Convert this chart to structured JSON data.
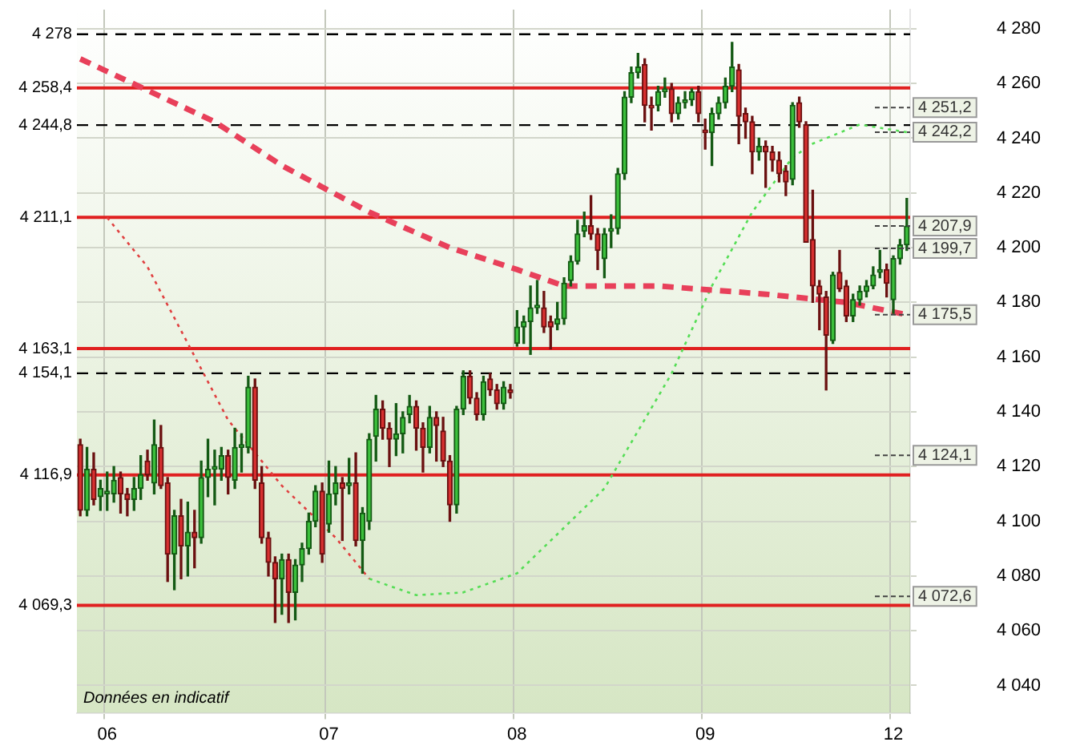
{
  "chart_data": {
    "type": "candlestick",
    "categories": [
      null,
      null,
      null,
      null,
      "06",
      null,
      null,
      null,
      null,
      null,
      null,
      null,
      null,
      null,
      null,
      null,
      null,
      null,
      null,
      null,
      null,
      null,
      null,
      null,
      null,
      null,
      null,
      null,
      null,
      null,
      null,
      null,
      null,
      null,
      null,
      null,
      null,
      "07",
      null,
      null,
      null,
      null,
      null,
      null,
      null,
      null,
      null,
      null,
      null,
      null,
      null,
      null,
      null,
      null,
      null,
      null,
      null,
      null,
      null,
      null,
      null,
      null,
      null,
      null,
      null,
      "08",
      null,
      null,
      null,
      null,
      null,
      null,
      null,
      null,
      null,
      null,
      null,
      null,
      null,
      null,
      null,
      null,
      null,
      null,
      null,
      null,
      null,
      null,
      null,
      null,
      null,
      null,
      null,
      "09",
      null,
      null,
      null,
      null,
      null,
      null,
      null,
      null,
      null,
      null,
      null,
      null,
      null,
      null,
      null,
      null,
      null,
      null,
      null,
      null,
      null,
      null,
      null,
      null,
      null,
      null,
      null,
      "12",
      null,
      null
    ],
    "ohlc": [
      [
        4128,
        4130,
        4102,
        4104
      ],
      [
        4104,
        4127,
        4102,
        4119
      ],
      [
        4119,
        4125,
        4106,
        4108
      ],
      [
        4109,
        4115,
        4104,
        4112
      ],
      [
        4110,
        4118,
        4104,
        4111
      ],
      [
        4110,
        4120,
        4107,
        4115
      ],
      [
        4116,
        4118,
        4103,
        4110
      ],
      [
        4110,
        4112,
        4102,
        4108
      ],
      [
        4108,
        4116,
        4104,
        4112
      ],
      [
        4112,
        4124,
        4108,
        4117
      ],
      [
        4122,
        4126,
        4115,
        4117
      ],
      [
        4114,
        4137,
        4110,
        4128
      ],
      [
        4127,
        4135,
        4112,
        4113
      ],
      [
        4114,
        4116,
        4078,
        4088
      ],
      [
        4088,
        4104,
        4075,
        4102
      ],
      [
        4102,
        4108,
        4079,
        4091
      ],
      [
        4091,
        4107,
        4080,
        4096
      ],
      [
        4096,
        4104,
        4083,
        4094
      ],
      [
        4094,
        4122,
        4092,
        4116
      ],
      [
        4116,
        4130,
        4109,
        4119
      ],
      [
        4119,
        4126,
        4106,
        4120
      ],
      [
        4119,
        4127,
        4115,
        4124
      ],
      [
        4124,
        4126,
        4110,
        4116
      ],
      [
        4115,
        4134,
        4112,
        4127
      ],
      [
        4127,
        4132,
        4118,
        4128
      ],
      [
        4127,
        4153,
        4125,
        4149
      ],
      [
        4149,
        4152,
        4112,
        4115
      ],
      [
        4114,
        4120,
        4092,
        4094
      ],
      [
        4094,
        4096,
        4080,
        4085
      ],
      [
        4085,
        4087,
        4063,
        4079
      ],
      [
        4079,
        4088,
        4066,
        4086
      ],
      [
        4086,
        4088,
        4063,
        4074
      ],
      [
        4074,
        4086,
        4064,
        4084
      ],
      [
        4084,
        4092,
        4078,
        4090
      ],
      [
        4090,
        4103,
        4088,
        4100
      ],
      [
        4100,
        4113,
        4098,
        4111
      ],
      [
        4111,
        4114,
        4085,
        4088
      ],
      [
        4099,
        4122,
        4096,
        4110
      ],
      [
        4110,
        4120,
        4106,
        4114
      ],
      [
        4114,
        4116,
        4093,
        4112
      ],
      [
        4113,
        4123,
        4110,
        4114
      ],
      [
        4114,
        4125,
        4091,
        4093
      ],
      [
        4093,
        4105,
        4081,
        4103
      ],
      [
        4100,
        4132,
        4097,
        4130
      ],
      [
        4131,
        4146,
        4122,
        4141
      ],
      [
        4141,
        4144,
        4130,
        4134
      ],
      [
        4134,
        4136,
        4120,
        4130
      ],
      [
        4130,
        4143,
        4124,
        4132
      ],
      [
        4132,
        4140,
        4125,
        4138
      ],
      [
        4139,
        4146,
        4136,
        4142
      ],
      [
        4142,
        4144,
        4126,
        4134
      ],
      [
        4134,
        4136,
        4118,
        4127
      ],
      [
        4127,
        4142,
        4125,
        4138
      ],
      [
        4138,
        4140,
        4122,
        4135
      ],
      [
        4133,
        4138,
        4120,
        4122
      ],
      [
        4122,
        4124,
        4100,
        4106
      ],
      [
        4106,
        4142,
        4103,
        4141
      ],
      [
        4141,
        4155,
        4139,
        4153
      ],
      [
        4153,
        4155,
        4143,
        4145
      ],
      [
        4145,
        4147,
        4137,
        4139
      ],
      [
        4139,
        4153,
        4137,
        4151
      ],
      [
        4152,
        4154,
        4146,
        4148
      ],
      [
        4148,
        4150,
        4141,
        4143
      ],
      [
        4143,
        4151,
        4141,
        4149
      ],
      [
        4148,
        4150,
        4145,
        4147
      ],
      [
        4165,
        4177,
        4164,
        4171
      ],
      [
        4171,
        4175,
        4165,
        4173
      ],
      [
        4173,
        4186,
        4161,
        4178
      ],
      [
        4178,
        4188,
        4176,
        4179
      ],
      [
        4178,
        4184,
        4169,
        4171
      ],
      [
        4173,
        4175,
        4163,
        4171
      ],
      [
        4172,
        4180,
        4170,
        4174
      ],
      [
        4174,
        4189,
        4172,
        4187
      ],
      [
        4188,
        4197,
        4186,
        4195
      ],
      [
        4195,
        4210,
        4194,
        4205
      ],
      [
        4206,
        4213,
        4204,
        4208
      ],
      [
        4208,
        4219,
        4203,
        4205
      ],
      [
        4205,
        4207,
        4192,
        4199
      ],
      [
        4196,
        4207,
        4189,
        4205
      ],
      [
        4206,
        4212,
        4200,
        4207
      ],
      [
        4207,
        4229,
        4205,
        4227
      ],
      [
        4227,
        4257,
        4225,
        4255
      ],
      [
        4255,
        4266,
        4253,
        4264
      ],
      [
        4264,
        4271,
        4262,
        4266
      ],
      [
        4267,
        4269,
        4246,
        4252
      ],
      [
        4252,
        4255,
        4243,
        4251
      ],
      [
        4252,
        4259,
        4250,
        4257
      ],
      [
        4257,
        4262,
        4255,
        4258
      ],
      [
        4258,
        4260,
        4246,
        4249
      ],
      [
        4249,
        4255,
        4247,
        4253
      ],
      [
        4253,
        4257,
        4251,
        4254
      ],
      [
        4254,
        4258,
        4252,
        4257
      ],
      [
        4257,
        4259,
        4246,
        4249
      ],
      [
        4243,
        4247,
        4236,
        4242
      ],
      [
        4242,
        4251,
        4230,
        4249
      ],
      [
        4249,
        4255,
        4247,
        4253
      ],
      [
        4253,
        4262,
        4251,
        4259
      ],
      [
        4259,
        4275,
        4257,
        4266
      ],
      [
        4265,
        4267,
        4238,
        4248
      ],
      [
        4249,
        4251,
        4240,
        4246
      ],
      [
        4246,
        4248,
        4227,
        4235
      ],
      [
        4235,
        4240,
        4232,
        4237
      ],
      [
        4237,
        4239,
        4222,
        4235
      ],
      [
        4235,
        4237,
        4228,
        4232
      ],
      [
        4232,
        4235,
        4224,
        4227
      ],
      [
        4228,
        4230,
        4219,
        4224
      ],
      [
        4225,
        4253,
        4223,
        4252
      ],
      [
        4253,
        4255,
        4244,
        4246
      ],
      [
        4245,
        4246,
        4202,
        4202
      ],
      [
        4203,
        4221,
        4180,
        4186
      ],
      [
        4186,
        4188,
        4170,
        4183
      ],
      [
        4182,
        4184,
        4148,
        4168
      ],
      [
        4166,
        4191,
        4165,
        4190
      ],
      [
        4191,
        4199,
        4184,
        4185
      ],
      [
        4186,
        4188,
        4173,
        4175
      ],
      [
        4175,
        4183,
        4173,
        4181
      ],
      [
        4181,
        4186,
        4179,
        4184
      ],
      [
        4184,
        4188,
        4182,
        4186
      ],
      [
        4186,
        4193,
        4185,
        4190
      ],
      [
        4191,
        4199,
        4189,
        4192
      ],
      [
        4192,
        4194,
        4182,
        4187
      ],
      [
        4181,
        4197,
        4176,
        4196
      ],
      [
        4196,
        4203,
        4194,
        4201
      ],
      [
        4201,
        4218,
        4199,
        4207.9
      ]
    ],
    "series": [
      {
        "type": "line",
        "color": "#e8405a",
        "line_style": "dashed",
        "values": [
          4269,
          null,
          null,
          null,
          null,
          null,
          null,
          null,
          null,
          null,
          null,
          null,
          null,
          null,
          null,
          null,
          null,
          null,
          null,
          null,
          4246,
          null,
          null,
          null,
          null,
          null,
          null,
          null,
          null,
          null,
          4230,
          null,
          null,
          null,
          null,
          null,
          null,
          null,
          null,
          null,
          null,
          null,
          null,
          4213,
          null,
          null,
          null,
          null,
          null,
          null,
          null,
          null,
          null,
          null,
          null,
          4200,
          null,
          null,
          null,
          null,
          null,
          null,
          null,
          null,
          null,
          4192,
          null,
          null,
          null,
          null,
          null,
          null,
          4186,
          null,
          null,
          null,
          null,
          null,
          null,
          null,
          null,
          null,
          null,
          null,
          null,
          null,
          4186,
          null,
          null,
          null,
          null,
          null,
          null,
          null,
          null,
          null,
          null,
          null,
          null,
          null,
          null,
          null,
          4183,
          null,
          null,
          null,
          null,
          null,
          null,
          null,
          null,
          null,
          null,
          null,
          4180,
          null,
          null,
          null,
          null,
          null,
          null,
          null,
          null,
          4175.5
        ]
      },
      {
        "type": "line",
        "color": "#e04040",
        "line_style": "dotted",
        "values": [
          null,
          null,
          null,
          null,
          4211,
          null,
          null,
          null,
          null,
          null,
          4193,
          null,
          null,
          null,
          null,
          null,
          null,
          null,
          null,
          null,
          null,
          null,
          4137,
          null,
          null,
          null,
          null,
          null,
          null,
          null,
          4113,
          null,
          null,
          null,
          null,
          null,
          null,
          null,
          4094,
          null,
          null,
          null,
          null,
          4079,
          null,
          null,
          null,
          null,
          null,
          null,
          null,
          null,
          null,
          null,
          null,
          null,
          null,
          null,
          null,
          null,
          null,
          null,
          null,
          null,
          null,
          null,
          null,
          null,
          null,
          null,
          null,
          null,
          null,
          null,
          null,
          null,
          null,
          null,
          null,
          null,
          null,
          null,
          null,
          null,
          null,
          null,
          null,
          null,
          null,
          null,
          null,
          null,
          null,
          null,
          null,
          null,
          null,
          null,
          null,
          null,
          null,
          null,
          null,
          null,
          null,
          null,
          null,
          null,
          null,
          null,
          null,
          null,
          null,
          null,
          null,
          null,
          null,
          null,
          null,
          null,
          null,
          null,
          null,
          null
        ]
      },
      {
        "type": "line",
        "color": "#55dd55",
        "line_style": "dotted",
        "values": [
          null,
          null,
          null,
          null,
          null,
          null,
          null,
          null,
          null,
          null,
          null,
          null,
          null,
          null,
          null,
          null,
          null,
          null,
          null,
          null,
          null,
          null,
          null,
          null,
          null,
          null,
          null,
          null,
          null,
          null,
          null,
          null,
          null,
          null,
          null,
          null,
          null,
          null,
          null,
          null,
          null,
          null,
          null,
          4079,
          null,
          null,
          null,
          null,
          null,
          null,
          4073,
          null,
          null,
          null,
          null,
          null,
          null,
          4074,
          null,
          null,
          null,
          null,
          null,
          null,
          null,
          4081,
          null,
          null,
          null,
          null,
          null,
          null,
          null,
          null,
          null,
          null,
          null,
          null,
          4112,
          null,
          null,
          null,
          null,
          null,
          null,
          null,
          null,
          null,
          4154,
          null,
          null,
          null,
          null,
          null,
          4186,
          null,
          null,
          null,
          null,
          null,
          4213,
          null,
          null,
          null,
          null,
          null,
          4233,
          null,
          null,
          4238,
          null,
          null,
          null,
          null,
          null,
          null,
          4245,
          null,
          null,
          null,
          null,
          null,
          null,
          4242.2
        ]
      }
    ],
    "ylim": [
      4030,
      4287
    ],
    "yticks": [
      {
        "value": 4040,
        "label": "4 040"
      },
      {
        "value": 4060,
        "label": "4 060"
      },
      {
        "value": 4080,
        "label": "4 080"
      },
      {
        "value": 4100,
        "label": "4 100"
      },
      {
        "value": 4120,
        "label": "4 120"
      },
      {
        "value": 4140,
        "label": "4 140"
      },
      {
        "value": 4160,
        "label": "4 160"
      },
      {
        "value": 4180,
        "label": "4 180"
      },
      {
        "value": 4200,
        "label": "4 200"
      },
      {
        "value": 4220,
        "label": "4 220"
      },
      {
        "value": 4240,
        "label": "4 240"
      },
      {
        "value": 4260,
        "label": "4 260"
      },
      {
        "value": 4280,
        "label": "4 280"
      }
    ],
    "ref_lines": [
      {
        "axis": "y",
        "value": 4278,
        "label": "4 278",
        "color": "#000000",
        "line_style": "dashed"
      },
      {
        "axis": "y",
        "value": 4258.4,
        "label": "4 258,4",
        "color": "#e02020",
        "line_style": "solid"
      },
      {
        "axis": "y",
        "value": 4244.8,
        "label": "4 244,8",
        "color": "#000000",
        "line_style": "dashed"
      },
      {
        "axis": "y",
        "value": 4211.1,
        "label": "4 211,1",
        "color": "#e02020",
        "line_style": "solid"
      },
      {
        "axis": "y",
        "value": 4163.1,
        "label": "4 163,1",
        "color": "#e02020",
        "line_style": "solid"
      },
      {
        "axis": "y",
        "value": 4154.1,
        "label": "4 154,1",
        "color": "#000000",
        "line_style": "dashed"
      },
      {
        "axis": "y",
        "value": 4116.9,
        "label": "4 116,9",
        "color": "#e02020",
        "line_style": "solid"
      },
      {
        "axis": "y",
        "value": 4069.3,
        "label": "4 069,3",
        "color": "#e02020",
        "line_style": "solid"
      }
    ],
    "annotations": [
      {
        "text": "4 251,2",
        "y": 4251.2
      },
      {
        "text": "4 242,2",
        "y": 4242.2
      },
      {
        "text": "4 207,9",
        "y": 4207.9
      },
      {
        "text": "4 199,7",
        "y": 4199.7
      },
      {
        "text": "4 175,5",
        "y": 4175.5
      },
      {
        "text": "4 124,1",
        "y": 4124.1
      },
      {
        "text": "4 072,6",
        "y": 4072.6
      },
      "Données en indicatif"
    ],
    "grid": true
  }
}
